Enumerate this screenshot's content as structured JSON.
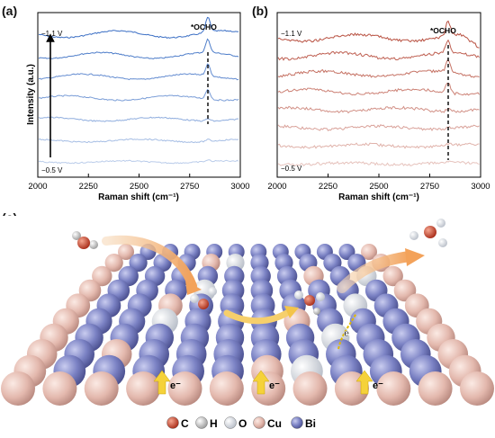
{
  "panel_labels": {
    "a": "(a)",
    "b": "(b)",
    "c": "(c)"
  },
  "colors": {
    "blue_series": "#3a6ec4",
    "red_series": "#b85040",
    "cu_atom": "#e3b8ad",
    "bi_atom": "#7b82c4"
  },
  "chart_data": [
    {
      "type": "line",
      "panel": "(a)",
      "xlabel": "Raman shift (cm⁻¹)",
      "ylabel": "Intensity (a.u.)",
      "xlim": [
        2000,
        3000
      ],
      "xticks": [
        "2000",
        "2250",
        "2500",
        "2750",
        "3000"
      ],
      "annotations": {
        "peak": "*OCHO",
        "top": "−1.1 V",
        "bottom": "−0.5 V"
      },
      "peak_x": 2840,
      "series_count": 7,
      "series_color": "#3a6ec4"
    },
    {
      "type": "line",
      "panel": "(b)",
      "xlabel": "Raman shift (cm⁻¹)",
      "ylabel": "",
      "xlim": [
        2000,
        3000
      ],
      "xticks": [
        "2000",
        "2250",
        "2500",
        "2750",
        "3000"
      ],
      "annotations": {
        "peak": "*OCHO",
        "top": "−1.1 V",
        "bottom": "−0.5 V"
      },
      "peak_x": 2840,
      "series_count": 8,
      "series_color": "#b85040"
    }
  ],
  "legend_c": [
    {
      "symbol": "C",
      "color": "#d2492f"
    },
    {
      "symbol": "H",
      "color": "#cfcfcf"
    },
    {
      "symbol": "O",
      "color": "#e6e9ee"
    },
    {
      "symbol": "Cu",
      "color": "#e3b8ad"
    },
    {
      "symbol": "Bi",
      "color": "#7b82c4"
    }
  ],
  "electron_label": "e⁻"
}
